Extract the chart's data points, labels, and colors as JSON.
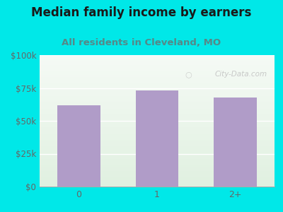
{
  "title": "Median family income by earners",
  "subtitle": "All residents in Cleveland, MO",
  "categories": [
    "0",
    "1",
    "2+"
  ],
  "values": [
    62000,
    73000,
    68000
  ],
  "bar_color": "#b09cc8",
  "background_color": "#00e8e8",
  "plot_bg_top": "#f5faf5",
  "plot_bg_bottom": "#e0f0e0",
  "title_color": "#1a1a1a",
  "subtitle_color": "#558888",
  "axis_label_color": "#666666",
  "ylim": [
    0,
    100000
  ],
  "yticks": [
    0,
    25000,
    50000,
    75000,
    100000
  ],
  "ytick_labels": [
    "$0",
    "$25k",
    "$50k",
    "$75k",
    "$100k"
  ],
  "watermark": "City-Data.com",
  "title_fontsize": 12,
  "subtitle_fontsize": 9.5
}
